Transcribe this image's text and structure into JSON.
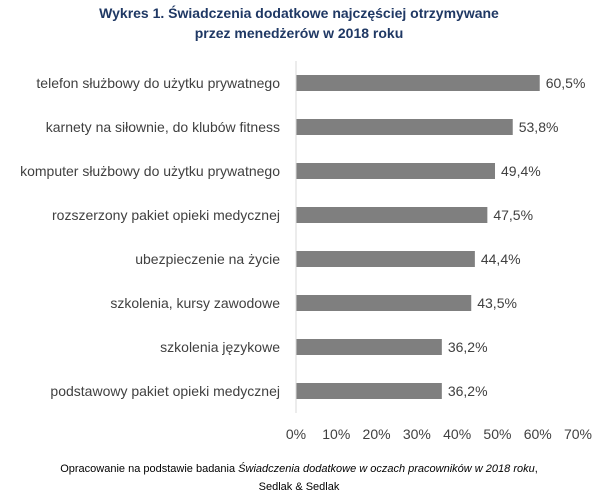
{
  "chart_data": {
    "type": "bar",
    "orientation": "horizontal",
    "title": "Wykres 1. Świadczenia dodatkowe najczęściej otrzymywane",
    "subtitle": "przez menedżerów w 2018 roku",
    "categories": [
      "telefon służbowy do użytku prywatnego",
      "karnety na siłownie, do klubów fitness",
      "komputer służbowy do użytku prywatnego",
      "rozszerzony pakiet opieki medycznej",
      "ubezpieczenie na życie",
      "szkolenia, kursy zawodowe",
      "szkolenia językowe",
      "podstawowy pakiet opieki medycznej"
    ],
    "values": [
      60.5,
      53.8,
      49.4,
      47.5,
      44.4,
      43.5,
      36.2,
      36.2
    ],
    "value_labels": [
      "60,5%",
      "53,8%",
      "49,4%",
      "47,5%",
      "44,4%",
      "43,5%",
      "36,2%",
      "36,2%"
    ],
    "xlim": [
      0,
      70
    ],
    "x_ticks": [
      0,
      10,
      20,
      30,
      40,
      50,
      60,
      70
    ],
    "x_tick_labels": [
      "0%",
      "10%",
      "20%",
      "30%",
      "40%",
      "50%",
      "60%",
      "70%"
    ],
    "grid": false,
    "legend": "none",
    "bar_color": "#7f7f7f",
    "xlabel": "",
    "ylabel": ""
  },
  "source": {
    "prefix": "Opracowanie na podstawie badania ",
    "study": "Świadczenia dodatkowe w oczach pracowników w 2018 roku",
    "suffix": ",",
    "line2": "Sedlak & Sedlak"
  }
}
